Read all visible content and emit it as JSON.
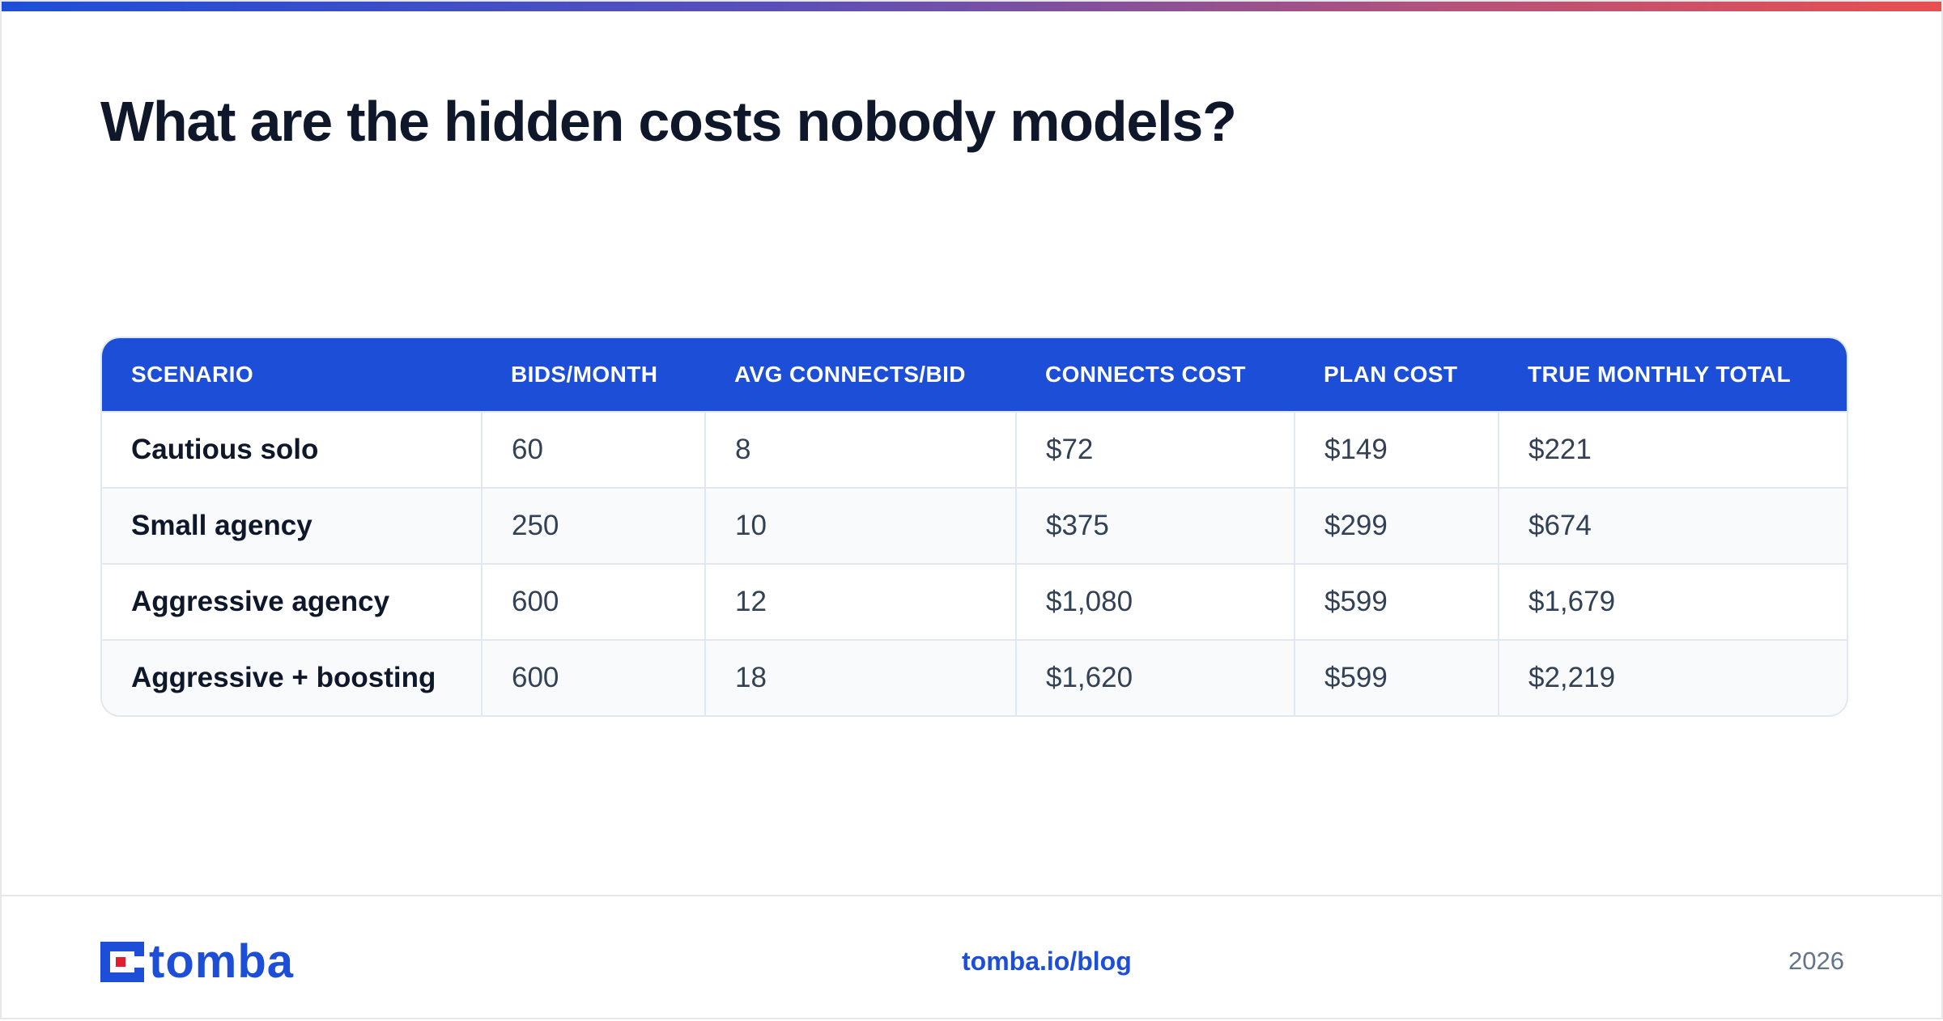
{
  "page": {
    "title": "What are the hidden costs nobody models?"
  },
  "table": {
    "headers": [
      "SCENARIO",
      "BIDS/MONTH",
      "AVG CONNECTS/BID",
      "CONNECTS COST",
      "PLAN COST",
      "TRUE MONTHLY TOTAL"
    ],
    "rows": [
      [
        "Cautious solo",
        "60",
        "8",
        "$72",
        "$149",
        "$221"
      ],
      [
        "Small agency",
        "250",
        "10",
        "$375",
        "$299",
        "$674"
      ],
      [
        "Aggressive agency",
        "600",
        "12",
        "$1,080",
        "$599",
        "$1,679"
      ],
      [
        "Aggressive + boosting",
        "600",
        "18",
        "$1,620",
        "$599",
        "$2,219"
      ]
    ]
  },
  "footer": {
    "logo_text": "tomba",
    "link": "tomba.io/blog",
    "year": "2026"
  },
  "colors": {
    "accent": "#1d4ed8",
    "logo_red": "#e11d2e",
    "gradient": [
      "#1d4ed8",
      "#e84f4f"
    ]
  },
  "icons": {
    "logo": "tomba-logo-mark"
  }
}
